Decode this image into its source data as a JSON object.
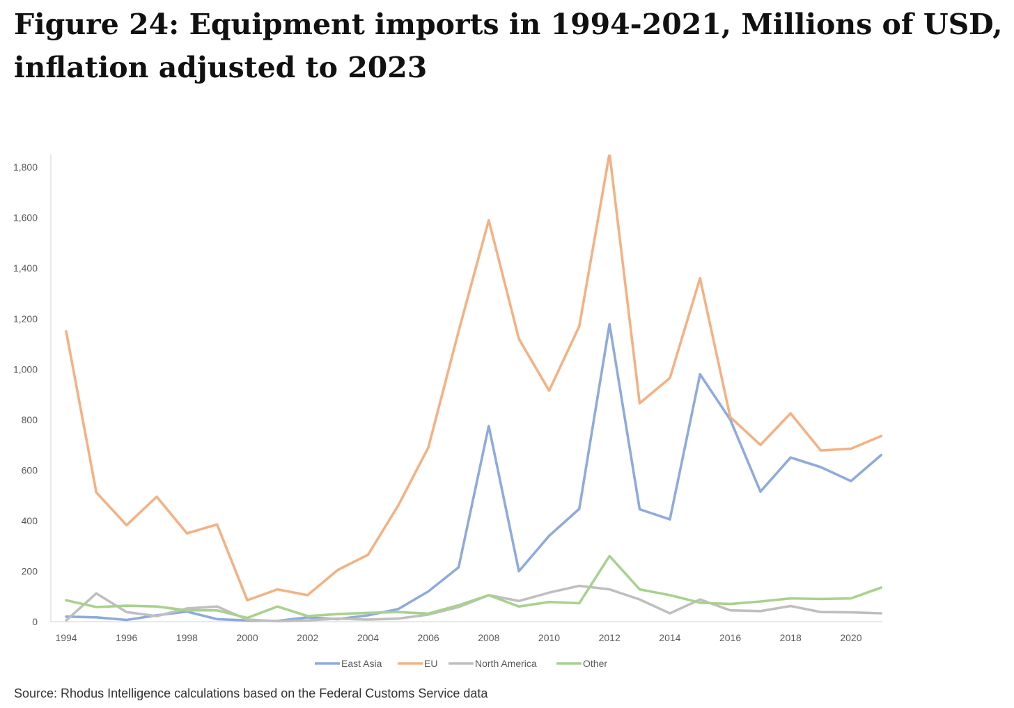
{
  "title": "Figure 24: Equipment imports in 1994-2021, Millions of USD, inflation adjusted to 2023",
  "source": "Source: Rhodus Intelligence calculations based on the Federal Customs Service data",
  "chart_data": {
    "type": "line",
    "title": "",
    "xlabel": "",
    "ylabel": "",
    "x": [
      1994,
      1995,
      1996,
      1997,
      1998,
      1999,
      2000,
      2001,
      2002,
      2003,
      2004,
      2005,
      2006,
      2007,
      2008,
      2009,
      2010,
      2011,
      2012,
      2013,
      2014,
      2015,
      2016,
      2017,
      2018,
      2019,
      2020,
      2021
    ],
    "xticks": [
      "1994",
      "1996",
      "1998",
      "2000",
      "2002",
      "2004",
      "2006",
      "2008",
      "2010",
      "2012",
      "2014",
      "2016",
      "2018",
      "2020"
    ],
    "yticks": [
      "0",
      "200",
      "400",
      "600",
      "800",
      "1,000",
      "1,200",
      "1,400",
      "1,600",
      "1,800"
    ],
    "ylim": [
      0,
      1850
    ],
    "grid": false,
    "legend_position": "bottom",
    "series": [
      {
        "name": "East Asia",
        "color": "#8faadc",
        "values": [
          20,
          17,
          7,
          25,
          40,
          10,
          5,
          3,
          17,
          10,
          25,
          50,
          120,
          215,
          775,
          200,
          340,
          447,
          1178,
          445,
          405,
          980,
          800,
          515,
          650,
          612,
          557,
          660
        ]
      },
      {
        "name": "EU",
        "color": "#f4b183",
        "values": [
          1150,
          512,
          382,
          495,
          350,
          385,
          85,
          128,
          105,
          205,
          265,
          460,
          690,
          1150,
          1590,
          1120,
          915,
          1170,
          1855,
          865,
          965,
          1360,
          810,
          700,
          825,
          678,
          685,
          735
        ]
      },
      {
        "name": "North America",
        "color": "#bfbfbf",
        "values": [
          5,
          112,
          38,
          22,
          52,
          60,
          8,
          2,
          5,
          12,
          8,
          12,
          28,
          58,
          105,
          82,
          115,
          142,
          128,
          88,
          33,
          88,
          45,
          42,
          62,
          38,
          37,
          33
        ]
      },
      {
        "name": "Other",
        "color": "#a9d18e",
        "values": [
          85,
          58,
          63,
          60,
          45,
          45,
          15,
          60,
          22,
          30,
          35,
          38,
          32,
          65,
          105,
          60,
          78,
          73,
          260,
          128,
          105,
          75,
          70,
          80,
          92,
          90,
          92,
          135
        ]
      }
    ]
  }
}
